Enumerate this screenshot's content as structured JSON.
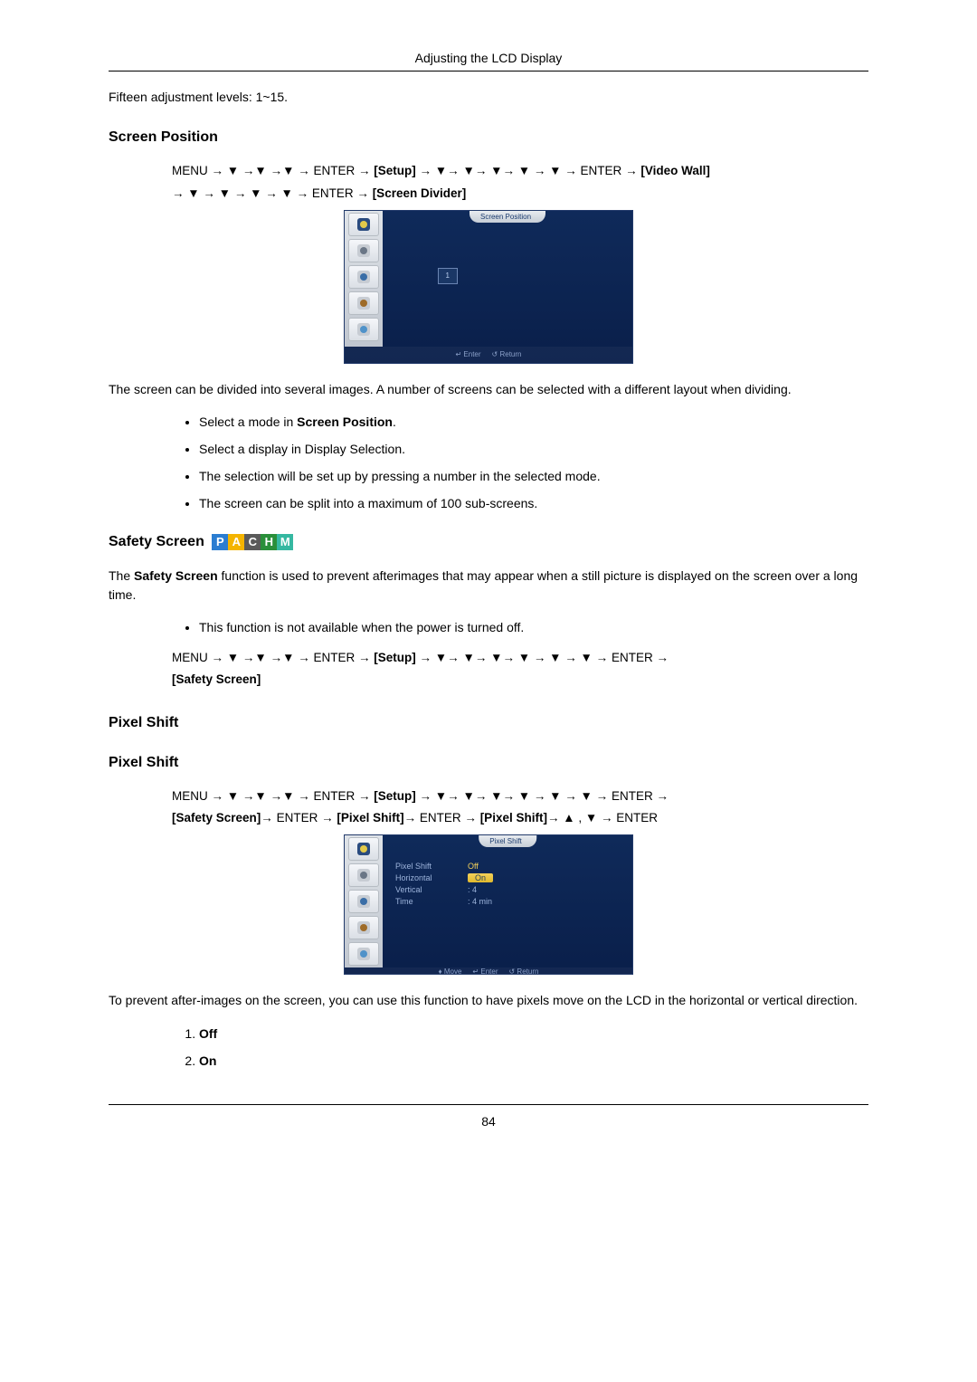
{
  "header": {
    "title": "Adjusting the LCD Display"
  },
  "intro": {
    "text": "Fifteen adjustment levels: 1~15."
  },
  "arrow_down": "▼",
  "arrow_up": "▲",
  "arrow_right": "→",
  "screenPosition": {
    "heading": "Screen Position",
    "path_parts": {
      "menu": "MENU",
      "enter": "ENTER",
      "setup": "[Setup]",
      "videoWall": "[Video Wall]",
      "screenDivider": "[Screen Divider]"
    },
    "osd_tab": "Screen Position",
    "osd_center": "1",
    "osd_footer": {
      "enter": "Enter",
      "return": "Return"
    },
    "desc": "The screen can be divided into several images. A number of screens can be selected with a different layout when dividing.",
    "bullets": [
      {
        "pre": "Select a mode in ",
        "bold": "Screen Position",
        "post": "."
      },
      {
        "pre": "Select a display in Display Selection.",
        "bold": "",
        "post": ""
      },
      {
        "pre": "The selection will be set up by pressing a number in the selected mode.",
        "bold": "",
        "post": ""
      },
      {
        "pre": "The screen can be split into a maximum of 100 sub-screens.",
        "bold": "",
        "post": ""
      }
    ]
  },
  "safetyScreen": {
    "heading": "Safety Screen",
    "pachm": [
      {
        "letter": "P",
        "bg": "#2b7dd1"
      },
      {
        "letter": "A",
        "bg": "#f4b400"
      },
      {
        "letter": "C",
        "bg": "#5a5a5a"
      },
      {
        "letter": "H",
        "bg": "#2a8f3a"
      },
      {
        "letter": "M",
        "bg": "#35b8a1"
      }
    ],
    "desc_pre": "The ",
    "desc_bold": "Safety Screen",
    "desc_post": " function is used to prevent afterimages that may appear when a still picture is displayed on the screen over a long time.",
    "bullet": "This function is not available when the power is turned off.",
    "path_parts": {
      "menu": "MENU",
      "enter": "ENTER",
      "setup": "[Setup]",
      "safety": "[Safety Screen]"
    }
  },
  "pixelShift": {
    "heading1": "Pixel Shift",
    "heading2": "Pixel Shift",
    "path_parts": {
      "menu": "MENU",
      "enter": "ENTER",
      "setup": "[Setup]",
      "safety": "[Safety Screen]",
      "pixelShift": "[Pixel Shift]"
    },
    "osd_tab": "Pixel Shift",
    "rows": [
      {
        "label": "Pixel Shift",
        "value": "Off",
        "hl": true
      },
      {
        "label": "Horizontal",
        "value": "On",
        "sel": true
      },
      {
        "label": "Vertical",
        "value": ": 4"
      },
      {
        "label": "Time",
        "value": ": 4 min"
      }
    ],
    "osd_footer": {
      "move": "Move",
      "enter": "Enter",
      "return": "Return"
    },
    "desc": "To prevent after-images on the screen, you can use this function to have pixels move on the LCD in the horizontal or vertical direction.",
    "options": [
      "Off",
      "On"
    ]
  },
  "footer": {
    "page": "84"
  },
  "icons": {
    "side": [
      {
        "name": "picture-icon",
        "bg": "#2a4b7f",
        "fg": "#e2c94a"
      },
      {
        "name": "sound-icon",
        "bg": "#c7ccd3",
        "fg": "#6a7686"
      },
      {
        "name": "setup-icon",
        "bg": "#c7ccd3",
        "fg": "#3a6ea7"
      },
      {
        "name": "multi-icon",
        "bg": "#c7ccd3",
        "fg": "#9e6b28"
      },
      {
        "name": "input-icon",
        "bg": "#c7ccd3",
        "fg": "#4f92c9"
      }
    ]
  }
}
